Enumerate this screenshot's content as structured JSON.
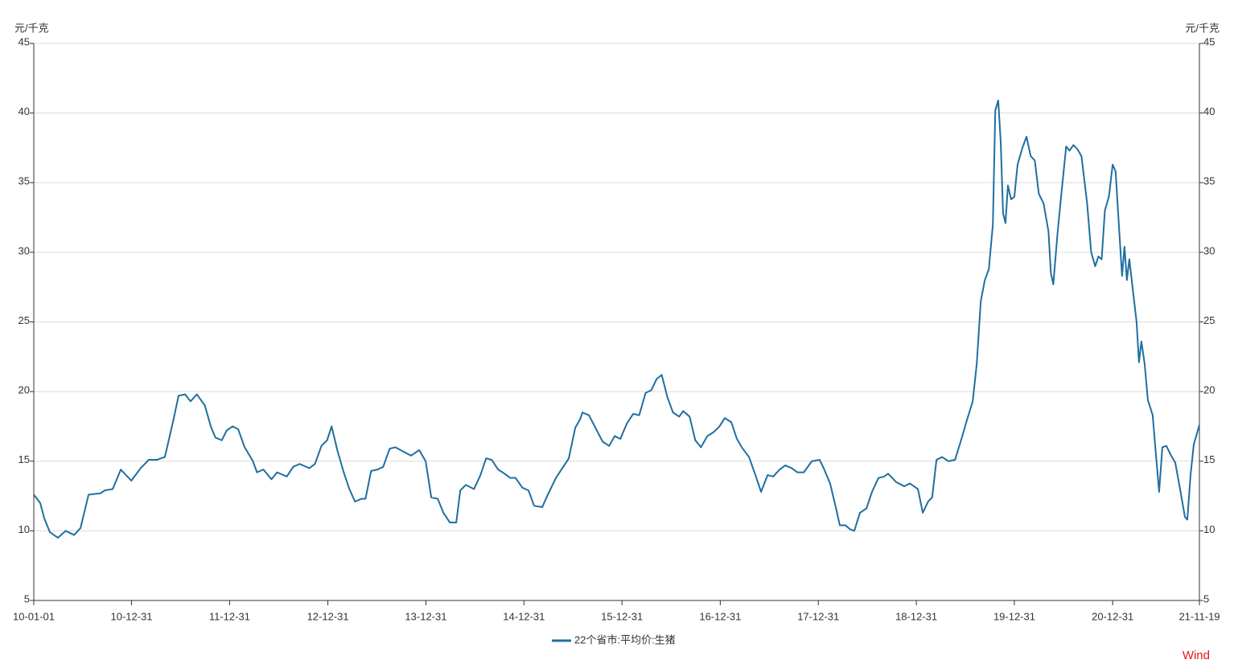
{
  "chart_data": {
    "type": "line",
    "y_label": "元/千克",
    "y2_label": "元/千克",
    "x": [
      "10-01-01",
      "10-01-25",
      "10-02-09",
      "10-03-02",
      "10-04-01",
      "10-04-30",
      "10-05-31",
      "10-06-24",
      "10-07-24",
      "10-09-07",
      "10-09-22",
      "10-10-22",
      "10-11-21",
      "10-12-30",
      "11-02-03",
      "11-03-05",
      "11-04-04",
      "11-05-04",
      "11-06-03",
      "11-06-24",
      "11-07-18",
      "11-08-08",
      "11-08-31",
      "11-09-30",
      "11-10-22",
      "11-11-08",
      "11-12-02",
      "11-12-20",
      "12-01-11",
      "12-02-01",
      "12-02-25",
      "12-03-27",
      "12-04-11",
      "12-05-05",
      "12-06-04",
      "12-06-25",
      "12-07-31",
      "12-08-24",
      "12-09-17",
      "12-10-23",
      "12-11-13",
      "12-12-07",
      "12-12-28",
      "13-01-14",
      "13-02-04",
      "13-02-28",
      "13-03-21",
      "13-04-11",
      "13-05-05",
      "13-05-20",
      "13-06-10",
      "13-07-04",
      "13-07-25",
      "13-08-18",
      "13-09-08",
      "13-10-17",
      "13-11-06",
      "13-12-06",
      "13-12-30",
      "14-01-20",
      "14-02-13",
      "14-03-06",
      "14-03-30",
      "14-04-23",
      "14-05-08",
      "14-05-29",
      "14-06-28",
      "14-07-22",
      "14-08-12",
      "14-09-02",
      "14-09-26",
      "14-10-20",
      "14-11-10",
      "14-11-30",
      "14-12-25",
      "15-01-17",
      "15-02-07",
      "15-03-09",
      "15-03-30",
      "15-04-29",
      "15-05-23",
      "15-06-16",
      "15-07-10",
      "15-07-28",
      "15-08-06",
      "15-08-30",
      "15-09-26",
      "15-10-20",
      "15-11-13",
      "15-12-04",
      "15-12-25",
      "16-01-18",
      "16-02-11",
      "16-03-04",
      "16-03-28",
      "16-04-18",
      "16-05-08",
      "16-05-27",
      "16-06-17",
      "16-07-08",
      "16-07-31",
      "16-08-15",
      "16-09-08",
      "16-09-29",
      "16-10-20",
      "16-11-13",
      "16-12-07",
      "16-12-28",
      "17-01-17",
      "17-02-10",
      "17-03-03",
      "17-03-21",
      "17-04-17",
      "17-05-11",
      "17-06-01",
      "17-06-25",
      "17-07-16",
      "17-08-09",
      "17-08-30",
      "17-09-23",
      "17-10-14",
      "17-11-07",
      "17-12-07",
      "18-01-05",
      "18-01-20",
      "18-02-13",
      "18-03-06",
      "18-03-21",
      "18-04-11",
      "18-04-29",
      "18-05-14",
      "18-06-04",
      "18-06-28",
      "18-07-19",
      "18-08-12",
      "18-09-02",
      "18-09-17",
      "18-10-17",
      "18-11-16",
      "18-12-07",
      "19-01-06",
      "19-01-24",
      "19-02-13",
      "19-02-28",
      "19-03-16",
      "19-04-06",
      "19-04-30",
      "19-05-24",
      "19-06-14",
      "19-07-05",
      "19-07-29",
      "19-08-13",
      "19-08-28",
      "19-09-12",
      "19-09-27",
      "19-10-12",
      "19-10-21",
      "19-11-01",
      "19-11-10",
      "19-11-19",
      "19-11-28",
      "19-12-07",
      "19-12-19",
      "19-12-31",
      "20-01-12",
      "20-01-30",
      "20-02-14",
      "20-03-01",
      "20-03-16",
      "20-03-31",
      "20-04-18",
      "20-05-06",
      "20-05-15",
      "20-05-24",
      "20-06-08",
      "20-06-23",
      "20-07-11",
      "20-07-23",
      "20-08-07",
      "20-08-22",
      "20-09-06",
      "20-09-27",
      "20-10-12",
      "20-10-27",
      "20-11-08",
      "20-11-20",
      "20-12-02",
      "20-12-17",
      "20-12-31",
      "21-01-11",
      "21-01-23",
      "21-02-04",
      "21-02-13",
      "21-02-22",
      "21-03-03",
      "21-03-18",
      "21-03-30",
      "21-04-08",
      "21-04-17",
      "21-04-29",
      "21-05-11",
      "21-05-29",
      "21-06-10",
      "21-06-22",
      "21-07-04",
      "21-07-19",
      "21-08-03",
      "21-08-21",
      "21-09-08",
      "21-09-26",
      "21-10-05",
      "21-10-17",
      "21-10-29",
      "21-11-19"
    ],
    "series": [
      {
        "name": "22个省市:平均价:生猪",
        "color": "#1f6fa0",
        "values": [
          12.6,
          12.0,
          10.9,
          9.9,
          9.5,
          10.0,
          9.7,
          10.2,
          12.6,
          12.7,
          12.9,
          13.0,
          14.4,
          13.6,
          14.5,
          15.1,
          15.1,
          15.3,
          17.8,
          19.7,
          19.8,
          19.3,
          19.8,
          19.0,
          17.5,
          16.7,
          16.5,
          17.2,
          17.5,
          17.3,
          16.0,
          15.0,
          14.2,
          14.4,
          13.7,
          14.2,
          13.9,
          14.6,
          14.8,
          14.5,
          14.8,
          16.1,
          16.5,
          17.5,
          15.8,
          14.2,
          13.0,
          12.1,
          12.3,
          12.3,
          14.3,
          14.4,
          14.6,
          15.9,
          16.0,
          15.6,
          15.4,
          15.8,
          15.0,
          12.4,
          12.3,
          11.3,
          10.6,
          10.6,
          12.9,
          13.3,
          13.0,
          14.0,
          15.2,
          15.1,
          14.4,
          14.1,
          13.8,
          13.8,
          13.1,
          12.9,
          11.8,
          11.7,
          12.6,
          13.8,
          14.5,
          15.2,
          17.4,
          18.0,
          18.5,
          18.3,
          17.3,
          16.4,
          16.1,
          16.8,
          16.6,
          17.7,
          18.4,
          18.3,
          19.9,
          20.1,
          20.9,
          21.2,
          19.6,
          18.5,
          18.2,
          18.6,
          18.2,
          16.5,
          16.0,
          16.8,
          17.1,
          17.5,
          18.1,
          17.8,
          16.6,
          16.0,
          15.3,
          14.0,
          12.8,
          14.0,
          13.9,
          14.4,
          14.7,
          14.5,
          14.2,
          14.2,
          15.0,
          15.1,
          14.5,
          13.4,
          11.7,
          10.4,
          10.4,
          10.1,
          10.0,
          11.3,
          11.6,
          12.8,
          13.8,
          13.9,
          14.1,
          13.5,
          13.2,
          13.4,
          13.0,
          11.3,
          12.1,
          12.4,
          15.1,
          15.3,
          15.0,
          15.1,
          16.4,
          17.8,
          19.3,
          22.0,
          26.5,
          28.0,
          28.8,
          32.0,
          40.2,
          40.9,
          38.0,
          32.8,
          32.1,
          34.8,
          33.8,
          34.0,
          36.3,
          37.5,
          38.3,
          36.9,
          36.6,
          34.2,
          33.5,
          31.5,
          28.5,
          27.7,
          31.2,
          34.2,
          37.6,
          37.3,
          37.7,
          37.4,
          36.9,
          33.5,
          30.0,
          29.0,
          29.7,
          29.5,
          33.0,
          34.0,
          36.3,
          35.8,
          32.0,
          28.3,
          30.4,
          28.0,
          29.5,
          27.0,
          25.0,
          22.1,
          23.6,
          22.0,
          19.4,
          18.3,
          15.5,
          12.8,
          16.0,
          16.1,
          15.5,
          14.9,
          13.0,
          11.0,
          10.8,
          14.0,
          16.2,
          17.6
        ]
      }
    ],
    "xlim": [
      "10-01-01",
      "21-11-19"
    ],
    "xticks": [
      "10-01-01",
      "10-12-31",
      "11-12-31",
      "12-12-31",
      "13-12-31",
      "14-12-31",
      "15-12-31",
      "16-12-31",
      "17-12-31",
      "18-12-31",
      "19-12-31",
      "20-12-31",
      "21-11-19"
    ],
    "ylim": [
      5,
      45
    ],
    "yticks": [
      5,
      10,
      15,
      20,
      25,
      30,
      35,
      40,
      45
    ],
    "y2lim": [
      5,
      45
    ],
    "y2ticks": [
      5,
      10,
      15,
      20,
      25,
      30,
      35,
      40,
      45
    ],
    "grid": true,
    "legend": "bottom",
    "source": "Wind",
    "source_color": "#e0161a"
  }
}
